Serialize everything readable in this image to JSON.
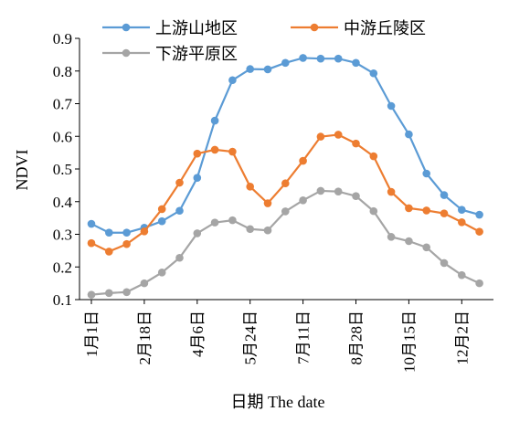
{
  "chart_data": {
    "type": "line",
    "xlabel": "日期 The date",
    "ylabel": "NDVI",
    "ylim": [
      0.1,
      0.9
    ],
    "yticks": [
      "0.1",
      "0.2",
      "0.3",
      "0.4",
      "0.5",
      "0.6",
      "0.7",
      "0.8",
      "0.9"
    ],
    "xticks": [
      "1月1日",
      "2月18日",
      "4月6日",
      "5月24日",
      "7月11日",
      "8月28日",
      "10月15日",
      "12月2日"
    ],
    "xtick_positions": [
      1,
      4,
      7,
      10,
      13,
      16,
      19,
      22
    ],
    "x": [
      1,
      2,
      3,
      4,
      5,
      6,
      7,
      8,
      9,
      10,
      11,
      12,
      13,
      14,
      15,
      16,
      17,
      18,
      19,
      20,
      21,
      22,
      23
    ],
    "legend_position": "top",
    "series": [
      {
        "name": "上游山地区",
        "color": "#5b9bd5",
        "values": [
          0.332,
          0.305,
          0.305,
          0.32,
          0.34,
          0.372,
          0.473,
          0.648,
          0.772,
          0.806,
          0.805,
          0.825,
          0.84,
          0.838,
          0.838,
          0.825,
          0.793,
          0.693,
          0.606,
          0.486,
          0.42,
          0.375,
          0.36
        ]
      },
      {
        "name": "中游丘陵区",
        "color": "#ed7d31",
        "values": [
          0.273,
          0.247,
          0.27,
          0.309,
          0.377,
          0.458,
          0.547,
          0.559,
          0.553,
          0.446,
          0.395,
          0.456,
          0.525,
          0.599,
          0.605,
          0.578,
          0.539,
          0.43,
          0.38,
          0.373,
          0.364,
          0.337,
          0.308
        ]
      },
      {
        "name": "下游平原区",
        "color": "#a5a5a5",
        "values": [
          0.115,
          0.12,
          0.123,
          0.15,
          0.183,
          0.228,
          0.303,
          0.336,
          0.343,
          0.316,
          0.312,
          0.37,
          0.404,
          0.433,
          0.431,
          0.417,
          0.371,
          0.292,
          0.279,
          0.26,
          0.212,
          0.175,
          0.15
        ]
      }
    ]
  }
}
